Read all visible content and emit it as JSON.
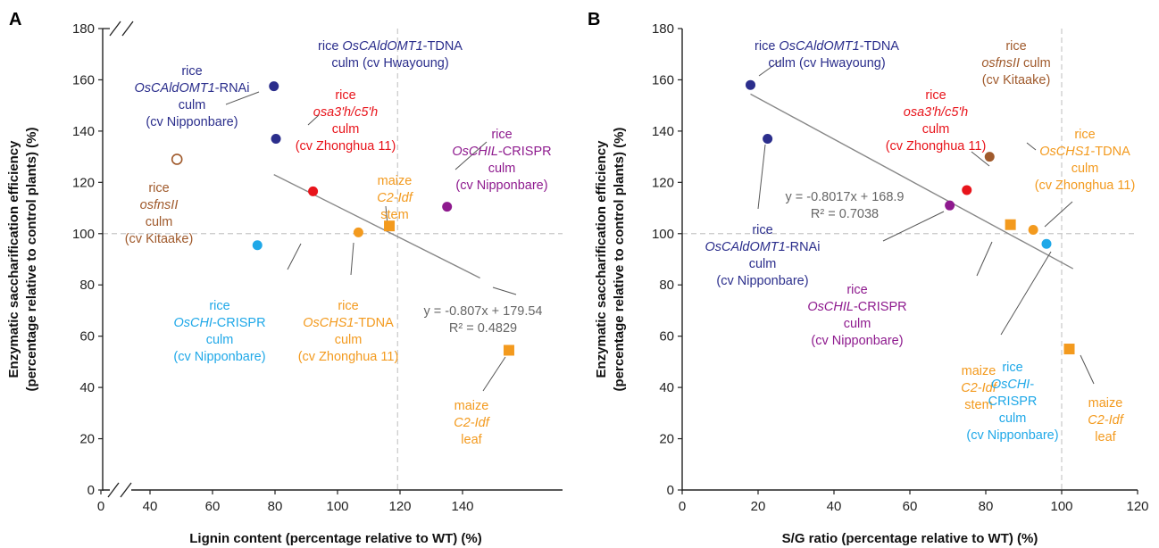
{
  "chart_data": [
    {
      "type": "scatter",
      "panel": "A",
      "xlabel": "Lignin content (percentage relative to WT) (%)",
      "ylabel_lines": [
        "Enzymatic saccharification efficiency",
        "(percentage relative to control plants) (%)"
      ],
      "x_ticks": [
        "0",
        "40",
        "60",
        "80",
        "100",
        "120",
        "140"
      ],
      "y_ticks": [
        "0",
        "20",
        "40",
        "60",
        "80",
        "100",
        "120",
        "140",
        "160",
        "180"
      ],
      "xlim": [
        30,
        140
      ],
      "ylim": [
        0,
        180
      ],
      "axis_break": true,
      "reference_lines": {
        "x": 100,
        "y": 100
      },
      "trendline": {
        "x_range": [
          70,
          120
        ],
        "equation": "y = -0.807x + 179.54",
        "r2": "R² = 0.4829"
      },
      "points": [
        {
          "x": 70,
          "y": 157.5,
          "marker": "circle",
          "color": "#2b2e8c",
          "fill": true
        },
        {
          "x": 70.5,
          "y": 137,
          "marker": "circle",
          "color": "#2b2e8c",
          "fill": true
        },
        {
          "x": 79.5,
          "y": 116.5,
          "marker": "circle",
          "color": "#e8141b",
          "fill": true
        },
        {
          "x": 112,
          "y": 110.5,
          "marker": "circle",
          "color": "#8e1a8e",
          "fill": true
        },
        {
          "x": 46.5,
          "y": 129,
          "marker": "circle",
          "color": "#a05a2c",
          "fill": false
        },
        {
          "x": 66,
          "y": 95.5,
          "marker": "circle",
          "color": "#1fa8e8",
          "fill": true
        },
        {
          "x": 90.5,
          "y": 100.5,
          "marker": "circle",
          "color": "#f39a1e",
          "fill": true
        },
        {
          "x": 98,
          "y": 103,
          "marker": "square",
          "color": "#f39a1e",
          "fill": true
        },
        {
          "x": 127,
          "y": 54.5,
          "marker": "square",
          "color": "#f39a1e",
          "fill": true
        }
      ],
      "annotations": [
        {
          "color": "#2b2e8c",
          "lines": [
            [
              [
                "rice",
                ""
              ]
            ],
            [
              [
                "OsCAldOMT1",
                "i"
              ],
              [
                "-RNAi",
                ""
              ]
            ],
            [
              [
                "culm",
                ""
              ]
            ],
            [
              [
                "(cv Nipponbare)",
                ""
              ]
            ]
          ]
        },
        {
          "color": "#2b2e8c",
          "lines": [
            [
              [
                "rice ",
                ""
              ],
              [
                "OsCAldOMT1",
                "i"
              ],
              [
                "-TDNA",
                ""
              ]
            ],
            [
              [
                "culm (cv Hwayoung)",
                ""
              ]
            ]
          ]
        },
        {
          "color": "#e8141b",
          "lines": [
            [
              [
                "rice",
                ""
              ]
            ],
            [
              [
                "osa3'h/c5'h",
                "i"
              ]
            ],
            [
              [
                "culm",
                ""
              ]
            ],
            [
              [
                "(cv Zhonghua 11)",
                ""
              ]
            ]
          ]
        },
        {
          "color": "#8e1a8e",
          "lines": [
            [
              [
                "rice",
                ""
              ]
            ],
            [
              [
                "OsCHIL",
                "i"
              ],
              [
                "-CRISPR",
                ""
              ]
            ],
            [
              [
                "culm",
                ""
              ]
            ],
            [
              [
                "(cv Nipponbare)",
                ""
              ]
            ]
          ]
        },
        {
          "color": "#f39a1e",
          "lines": [
            [
              [
                "maize",
                ""
              ]
            ],
            [
              [
                "C2-Idf",
                "i"
              ]
            ],
            [
              [
                "stem",
                ""
              ]
            ]
          ]
        },
        {
          "color": "#a05a2c",
          "lines": [
            [
              [
                "rice",
                ""
              ]
            ],
            [
              [
                "osfnsII",
                "i"
              ]
            ],
            [
              [
                "culm",
                ""
              ]
            ],
            [
              [
                "(cv Kitaake)",
                ""
              ]
            ]
          ]
        },
        {
          "color": "#1fa8e8",
          "lines": [
            [
              [
                "rice",
                ""
              ]
            ],
            [
              [
                "OsCHI",
                "i"
              ],
              [
                "-CRISPR",
                ""
              ]
            ],
            [
              [
                "culm",
                ""
              ]
            ],
            [
              [
                "(cv Nipponbare)",
                ""
              ]
            ]
          ]
        },
        {
          "color": "#f39a1e",
          "lines": [
            [
              [
                "rice",
                ""
              ]
            ],
            [
              [
                "OsCHS1",
                "i"
              ],
              [
                "-TDNA",
                ""
              ]
            ],
            [
              [
                "culm",
                ""
              ]
            ],
            [
              [
                "(cv Zhonghua 11)",
                ""
              ]
            ]
          ]
        },
        {
          "color": "#f39a1e",
          "lines": [
            [
              [
                "maize",
                ""
              ]
            ],
            [
              [
                "C2-Idf",
                "i"
              ]
            ],
            [
              [
                "leaf",
                ""
              ]
            ]
          ]
        }
      ]
    },
    {
      "type": "scatter",
      "panel": "B",
      "xlabel": "S/G ratio (percentage relative to WT) (%)",
      "ylabel_lines": [
        "Enzymatic saccharification efficiency",
        "(percentage relative to control plants) (%)"
      ],
      "x_ticks": [
        "0",
        "20",
        "40",
        "60",
        "80",
        "100",
        "120"
      ],
      "y_ticks": [
        "0",
        "20",
        "40",
        "60",
        "80",
        "100",
        "120",
        "140",
        "160",
        "180"
      ],
      "xlim": [
        0,
        120
      ],
      "ylim": [
        0,
        180
      ],
      "axis_break": false,
      "reference_lines": {
        "x": 100,
        "y": 100
      },
      "trendline": {
        "x_range": [
          18,
          103
        ],
        "equation": "y = -0.8017x + 168.9",
        "r2": "R² = 0.7038"
      },
      "points": [
        {
          "x": 18,
          "y": 158,
          "marker": "circle",
          "color": "#2b2e8c",
          "fill": true
        },
        {
          "x": 22.5,
          "y": 137,
          "marker": "circle",
          "color": "#2b2e8c",
          "fill": true
        },
        {
          "x": 75,
          "y": 117,
          "marker": "circle",
          "color": "#e8141b",
          "fill": true
        },
        {
          "x": 81,
          "y": 130,
          "marker": "circle",
          "color": "#a05a2c",
          "fill": true
        },
        {
          "x": 70.5,
          "y": 111,
          "marker": "circle",
          "color": "#8e1a8e",
          "fill": true
        },
        {
          "x": 86.5,
          "y": 103.5,
          "marker": "square",
          "color": "#f39a1e",
          "fill": true
        },
        {
          "x": 92.5,
          "y": 101.5,
          "marker": "circle",
          "color": "#f39a1e",
          "fill": true
        },
        {
          "x": 96,
          "y": 96,
          "marker": "circle",
          "color": "#1fa8e8",
          "fill": true
        },
        {
          "x": 102,
          "y": 55,
          "marker": "square",
          "color": "#f39a1e",
          "fill": true
        }
      ],
      "annotations": [
        {
          "color": "#2b2e8c",
          "lines": [
            [
              [
                "rice ",
                ""
              ],
              [
                "OsCAldOMT1",
                "i"
              ],
              [
                "-TDNA",
                ""
              ]
            ],
            [
              [
                "culm (cv Hwayoung)",
                ""
              ]
            ]
          ]
        },
        {
          "color": "#e8141b",
          "lines": [
            [
              [
                "rice",
                ""
              ]
            ],
            [
              [
                "osa3'h/c5'h",
                "i"
              ]
            ],
            [
              [
                "culm",
                ""
              ]
            ],
            [
              [
                "(cv Zhonghua 11)",
                ""
              ]
            ]
          ]
        },
        {
          "color": "#a05a2c",
          "lines": [
            [
              [
                "rice",
                ""
              ]
            ],
            [
              [
                "osfnsII",
                "i"
              ],
              [
                " culm",
                ""
              ]
            ],
            [
              [
                "(cv Kitaake)",
                ""
              ]
            ]
          ]
        },
        {
          "color": "#f39a1e",
          "lines": [
            [
              [
                "rice",
                ""
              ]
            ],
            [
              [
                "OsCHS1",
                "i"
              ],
              [
                "-TDNA",
                ""
              ]
            ],
            [
              [
                "culm",
                ""
              ]
            ],
            [
              [
                "(cv Zhonghua 11)",
                ""
              ]
            ]
          ]
        },
        {
          "color": "#2b2e8c",
          "lines": [
            [
              [
                "rice",
                ""
              ]
            ],
            [
              [
                "OsCAldOMT1",
                "i"
              ],
              [
                "-RNAi",
                ""
              ]
            ],
            [
              [
                "culm",
                ""
              ]
            ],
            [
              [
                "(cv Nipponbare)",
                ""
              ]
            ]
          ]
        },
        {
          "color": "#8e1a8e",
          "lines": [
            [
              [
                "rice",
                ""
              ]
            ],
            [
              [
                "OsCHIL",
                "i"
              ],
              [
                "-CRISPR",
                ""
              ]
            ],
            [
              [
                "culm",
                ""
              ]
            ],
            [
              [
                "(cv Nipponbare)",
                ""
              ]
            ]
          ]
        },
        {
          "color": "#f39a1e",
          "lines": [
            [
              [
                "maize",
                ""
              ]
            ],
            [
              [
                "C2-Idf",
                "i"
              ]
            ],
            [
              [
                "stem",
                ""
              ]
            ]
          ]
        },
        {
          "color": "#1fa8e8",
          "lines": [
            [
              [
                "rice",
                ""
              ]
            ],
            [
              [
                "OsCHI",
                "i"
              ],
              [
                "-",
                ""
              ]
            ],
            [
              [
                "CRISPR",
                ""
              ]
            ],
            [
              [
                "culm",
                ""
              ]
            ],
            [
              [
                "(cv Nipponbare)",
                ""
              ]
            ]
          ]
        },
        {
          "color": "#f39a1e",
          "lines": [
            [
              [
                "maize",
                ""
              ]
            ],
            [
              [
                "C2-Idf",
                "i"
              ]
            ],
            [
              [
                "leaf",
                ""
              ]
            ]
          ]
        }
      ]
    }
  ]
}
